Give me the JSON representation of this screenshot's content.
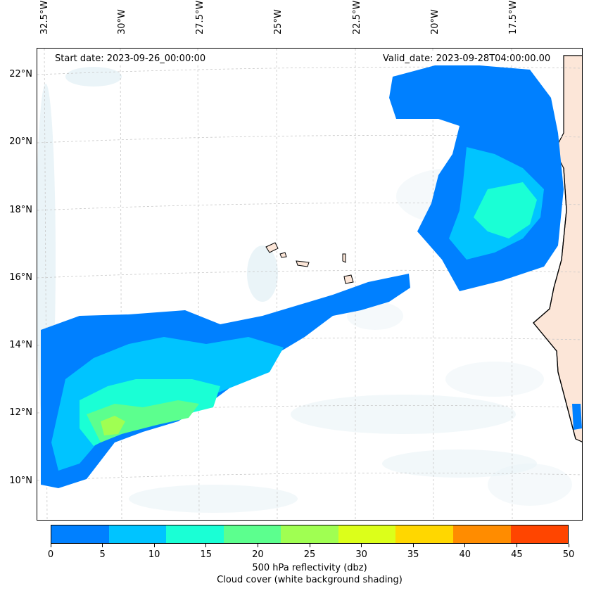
{
  "start_date": "Start date: 2023-09-26_00:00:00",
  "valid_date": "Valid_date: 2023-09-28T04:00:00.00",
  "lon_labels": [
    "32.5°W",
    "30°W",
    "27.5°W",
    "25°W",
    "22.5°W",
    "20°W",
    "17.5°W"
  ],
  "lat_labels": [
    "22°N",
    "20°N",
    "18°N",
    "16°N",
    "14°N",
    "12°N",
    "10°N"
  ],
  "colorbar": {
    "ticks": [
      "0",
      "5",
      "10",
      "15",
      "20",
      "25",
      "30",
      "35",
      "40",
      "45",
      "50"
    ],
    "colors": [
      "#0080ff",
      "#00c4ff",
      "#1affd5",
      "#5cff8e",
      "#a0ff52",
      "#dcff1a",
      "#ffd700",
      "#ff8c00",
      "#ff4500"
    ],
    "title_line1": "500 hPa reflectivity (dbz)",
    "title_line2": "Cloud cover (white background shading)"
  },
  "map_colors": {
    "ocean": "#ffffff",
    "land": "#fce6d8",
    "coast": "#000000",
    "cloud_shading": "#d9ebf2",
    "gridline": "#c8c8c8"
  }
}
